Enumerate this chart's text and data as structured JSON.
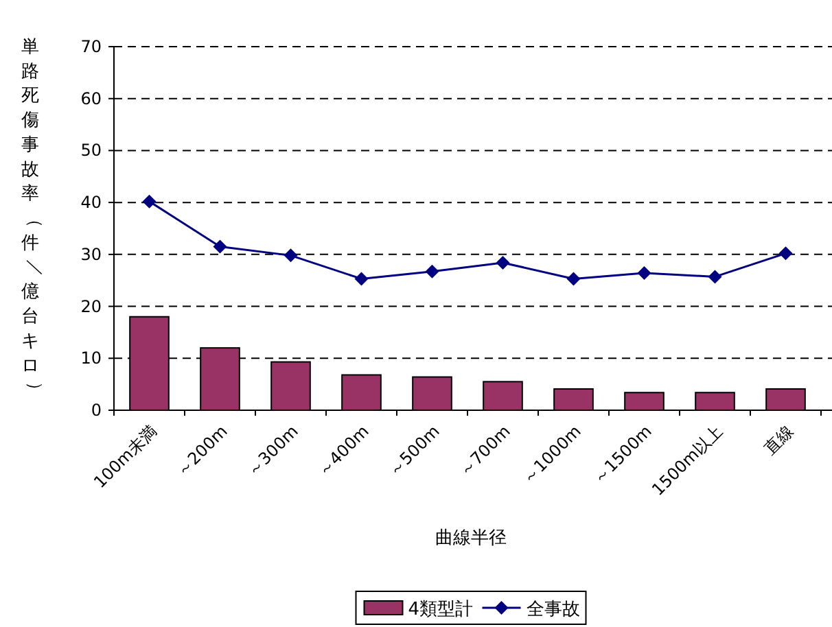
{
  "chart_data": {
    "type": "bar",
    "xlabel": "曲線半径",
    "ylabel": "単路死傷事故率（件／億台キロ）",
    "categories": [
      "100m未満",
      "～200m",
      "～300m",
      "～400m",
      "～500m",
      "～700m",
      "～1000m",
      "～1500m",
      "1500m以上",
      "直線"
    ],
    "series": [
      {
        "name": "4類型計",
        "color": "#993366",
        "values": [
          18.0,
          12.0,
          9.3,
          6.8,
          6.4,
          5.5,
          4.1,
          3.4,
          3.4,
          4.1
        ]
      },
      {
        "name": "全事故",
        "type": "line",
        "color": "#000080",
        "marker": "diamond",
        "values": [
          40.2,
          31.5,
          29.8,
          25.3,
          26.7,
          28.4,
          25.3,
          26.4,
          25.7,
          30.2
        ]
      }
    ],
    "ylim": [
      0,
      70
    ],
    "yticks": [
      0,
      10,
      20,
      30,
      40,
      50,
      60,
      70
    ],
    "grid": "y",
    "legend": "bottom"
  }
}
